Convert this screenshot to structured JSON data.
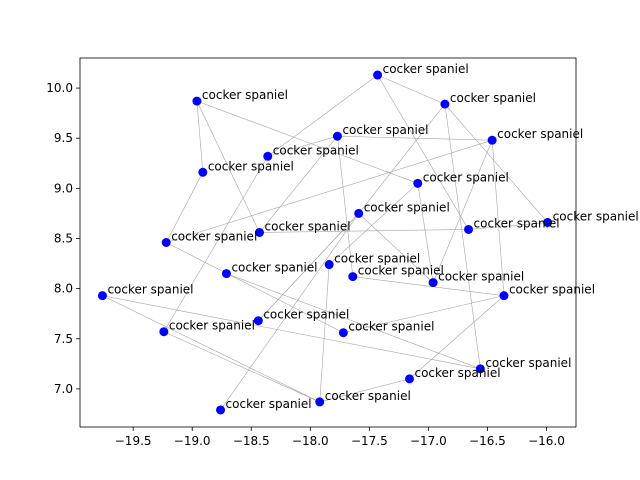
{
  "chart_data": {
    "type": "scatter",
    "title": "",
    "xlabel": "",
    "ylabel": "",
    "xlim": [
      -19.95,
      -15.75
    ],
    "ylim": [
      6.62,
      10.3
    ],
    "xticks": [
      -19.5,
      -19.0,
      -18.5,
      -18.0,
      -17.5,
      -17.0,
      -16.5,
      -16.0
    ],
    "xtick_labels": [
      "−19.5",
      "−19.0",
      "−18.5",
      "−18.0",
      "−17.5",
      "−17.0",
      "−16.5",
      "−16.0"
    ],
    "yticks": [
      7.0,
      7.5,
      8.0,
      8.5,
      9.0,
      9.5,
      10.0
    ],
    "ytick_labels": [
      "7.0",
      "7.5",
      "8.0",
      "8.5",
      "9.0",
      "9.5",
      "10.0"
    ],
    "grid": false,
    "marker_color": "#0000ff",
    "edge_color": "#a6a6a6",
    "points": [
      {
        "x": -17.43,
        "y": 10.13,
        "label": "cocker spaniel"
      },
      {
        "x": -16.86,
        "y": 9.84,
        "label": "cocker spaniel"
      },
      {
        "x": -18.96,
        "y": 9.87,
        "label": "cocker spaniel"
      },
      {
        "x": -17.77,
        "y": 9.52,
        "label": "cocker spaniel"
      },
      {
        "x": -16.46,
        "y": 9.48,
        "label": "cocker spaniel"
      },
      {
        "x": -18.36,
        "y": 9.32,
        "label": "cocker spaniel"
      },
      {
        "x": -18.91,
        "y": 9.16,
        "label": "cocker spaniel"
      },
      {
        "x": -17.09,
        "y": 9.05,
        "label": "cocker spaniel"
      },
      {
        "x": -17.59,
        "y": 8.75,
        "label": "cocker spaniel"
      },
      {
        "x": -15.99,
        "y": 8.66,
        "label": "cocker spaniel"
      },
      {
        "x": -16.66,
        "y": 8.59,
        "label": "cocker spaniel"
      },
      {
        "x": -18.43,
        "y": 8.56,
        "label": "cocker spaniel"
      },
      {
        "x": -19.22,
        "y": 8.46,
        "label": "cocker spaniel"
      },
      {
        "x": -17.84,
        "y": 8.24,
        "label": "cocker spaniel"
      },
      {
        "x": -18.71,
        "y": 8.15,
        "label": "cocker spaniel"
      },
      {
        "x": -17.64,
        "y": 8.12,
        "label": "cocker spaniel"
      },
      {
        "x": -16.96,
        "y": 8.06,
        "label": "cocker spaniel"
      },
      {
        "x": -19.76,
        "y": 7.93,
        "label": "cocker spaniel"
      },
      {
        "x": -16.36,
        "y": 7.93,
        "label": "cocker spaniel"
      },
      {
        "x": -18.44,
        "y": 7.68,
        "label": "cocker spaniel"
      },
      {
        "x": -19.24,
        "y": 7.57,
        "label": "cocker spaniel"
      },
      {
        "x": -17.72,
        "y": 7.56,
        "label": "cocker spaniel"
      },
      {
        "x": -16.56,
        "y": 7.2,
        "label": "cocker spaniel"
      },
      {
        "x": -17.16,
        "y": 7.1,
        "label": "cocker spaniel"
      },
      {
        "x": -17.92,
        "y": 6.87,
        "label": "cocker spaniel"
      },
      {
        "x": -18.76,
        "y": 6.79,
        "label": "cocker spaniel"
      }
    ],
    "edges": [
      [
        0,
        5
      ],
      [
        0,
        1
      ],
      [
        1,
        9
      ],
      [
        1,
        22
      ],
      [
        1,
        8
      ],
      [
        2,
        6
      ],
      [
        2,
        7
      ],
      [
        2,
        11
      ],
      [
        3,
        4
      ],
      [
        3,
        11
      ],
      [
        3,
        15
      ],
      [
        4,
        12
      ],
      [
        4,
        16
      ],
      [
        5,
        20
      ],
      [
        5,
        3
      ],
      [
        6,
        12
      ],
      [
        7,
        16
      ],
      [
        7,
        13
      ],
      [
        8,
        25
      ],
      [
        8,
        19
      ],
      [
        0,
        10
      ],
      [
        10,
        9
      ],
      [
        11,
        10
      ],
      [
        12,
        21
      ],
      [
        13,
        24
      ],
      [
        14,
        22
      ],
      [
        15,
        18
      ],
      [
        16,
        8
      ],
      [
        17,
        22
      ],
      [
        17,
        24
      ],
      [
        18,
        23
      ],
      [
        20,
        24
      ],
      [
        21,
        18
      ],
      [
        23,
        24
      ],
      [
        19,
        8
      ],
      [
        18,
        4
      ]
    ]
  }
}
